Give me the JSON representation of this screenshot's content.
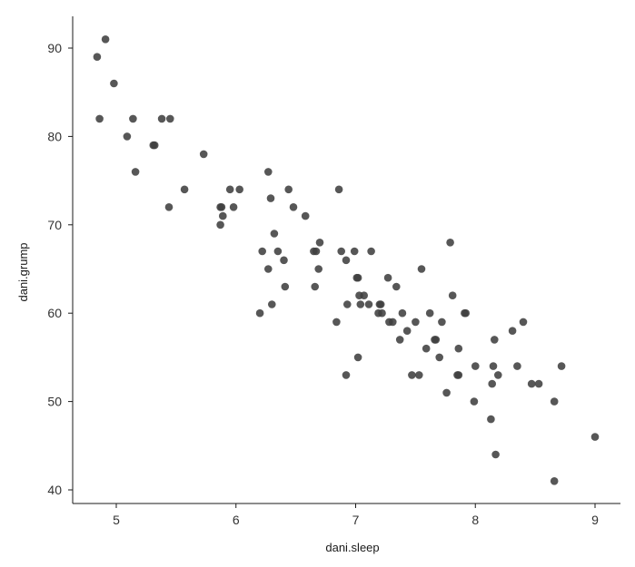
{
  "chart_data": {
    "type": "scatter",
    "title": "",
    "xlabel": "dani.sleep",
    "ylabel": "dani.grump",
    "xlim": [
      4.6,
      9.2
    ],
    "ylim": [
      38.5,
      93.5
    ],
    "x_ticks": [
      5,
      6,
      7,
      8,
      9
    ],
    "y_ticks": [
      40,
      50,
      60,
      70,
      80,
      90
    ],
    "grid": false,
    "legend": "none",
    "point_color": "#404040",
    "series": [
      {
        "points": [
          [
            4.84,
            89
          ],
          [
            4.91,
            91
          ],
          [
            4.86,
            82
          ],
          [
            4.98,
            86
          ],
          [
            5.09,
            80
          ],
          [
            5.14,
            82
          ],
          [
            5.16,
            76
          ],
          [
            5.31,
            79
          ],
          [
            5.32,
            79
          ],
          [
            5.38,
            82
          ],
          [
            5.45,
            82
          ],
          [
            5.44,
            72
          ],
          [
            5.57,
            74
          ],
          [
            5.73,
            78
          ],
          [
            5.87,
            72
          ],
          [
            5.88,
            72
          ],
          [
            5.87,
            70
          ],
          [
            5.89,
            71
          ],
          [
            5.95,
            74
          ],
          [
            5.98,
            72
          ],
          [
            6.03,
            74
          ],
          [
            6.2,
            60
          ],
          [
            6.22,
            67
          ],
          [
            6.27,
            76
          ],
          [
            6.27,
            65
          ],
          [
            6.29,
            73
          ],
          [
            6.3,
            61
          ],
          [
            6.32,
            69
          ],
          [
            6.35,
            67
          ],
          [
            6.4,
            66
          ],
          [
            6.41,
            63
          ],
          [
            6.44,
            74
          ],
          [
            6.48,
            72
          ],
          [
            6.58,
            71
          ],
          [
            6.65,
            67
          ],
          [
            6.66,
            63
          ],
          [
            6.67,
            67
          ],
          [
            6.69,
            65
          ],
          [
            6.7,
            68
          ],
          [
            6.84,
            59
          ],
          [
            6.86,
            74
          ],
          [
            6.88,
            67
          ],
          [
            6.92,
            66
          ],
          [
            6.92,
            53
          ],
          [
            6.93,
            61
          ],
          [
            6.99,
            67
          ],
          [
            7.01,
            64
          ],
          [
            7.02,
            64
          ],
          [
            7.03,
            62
          ],
          [
            7.02,
            55
          ],
          [
            7.04,
            61
          ],
          [
            7.07,
            62
          ],
          [
            7.11,
            61
          ],
          [
            7.13,
            67
          ],
          [
            7.19,
            60
          ],
          [
            7.2,
            61
          ],
          [
            7.21,
            61
          ],
          [
            7.22,
            60
          ],
          [
            7.27,
            64
          ],
          [
            7.28,
            59
          ],
          [
            7.31,
            59
          ],
          [
            7.34,
            63
          ],
          [
            7.37,
            57
          ],
          [
            7.39,
            60
          ],
          [
            7.43,
            58
          ],
          [
            7.47,
            53
          ],
          [
            7.5,
            59
          ],
          [
            7.53,
            53
          ],
          [
            7.55,
            65
          ],
          [
            7.59,
            56
          ],
          [
            7.62,
            60
          ],
          [
            7.66,
            57
          ],
          [
            7.67,
            57
          ],
          [
            7.7,
            55
          ],
          [
            7.72,
            59
          ],
          [
            7.76,
            51
          ],
          [
            7.79,
            68
          ],
          [
            7.81,
            62
          ],
          [
            7.85,
            53
          ],
          [
            7.86,
            53
          ],
          [
            7.86,
            56
          ],
          [
            7.91,
            60
          ],
          [
            7.92,
            60
          ],
          [
            7.99,
            50
          ],
          [
            8.0,
            54
          ],
          [
            8.13,
            48
          ],
          [
            8.14,
            52
          ],
          [
            8.15,
            54
          ],
          [
            8.16,
            57
          ],
          [
            8.17,
            44
          ],
          [
            8.19,
            53
          ],
          [
            8.31,
            58
          ],
          [
            8.35,
            54
          ],
          [
            8.4,
            59
          ],
          [
            8.47,
            52
          ],
          [
            8.53,
            52
          ],
          [
            8.66,
            50
          ],
          [
            8.66,
            41
          ],
          [
            8.72,
            54
          ],
          [
            9.0,
            46
          ]
        ]
      }
    ]
  }
}
